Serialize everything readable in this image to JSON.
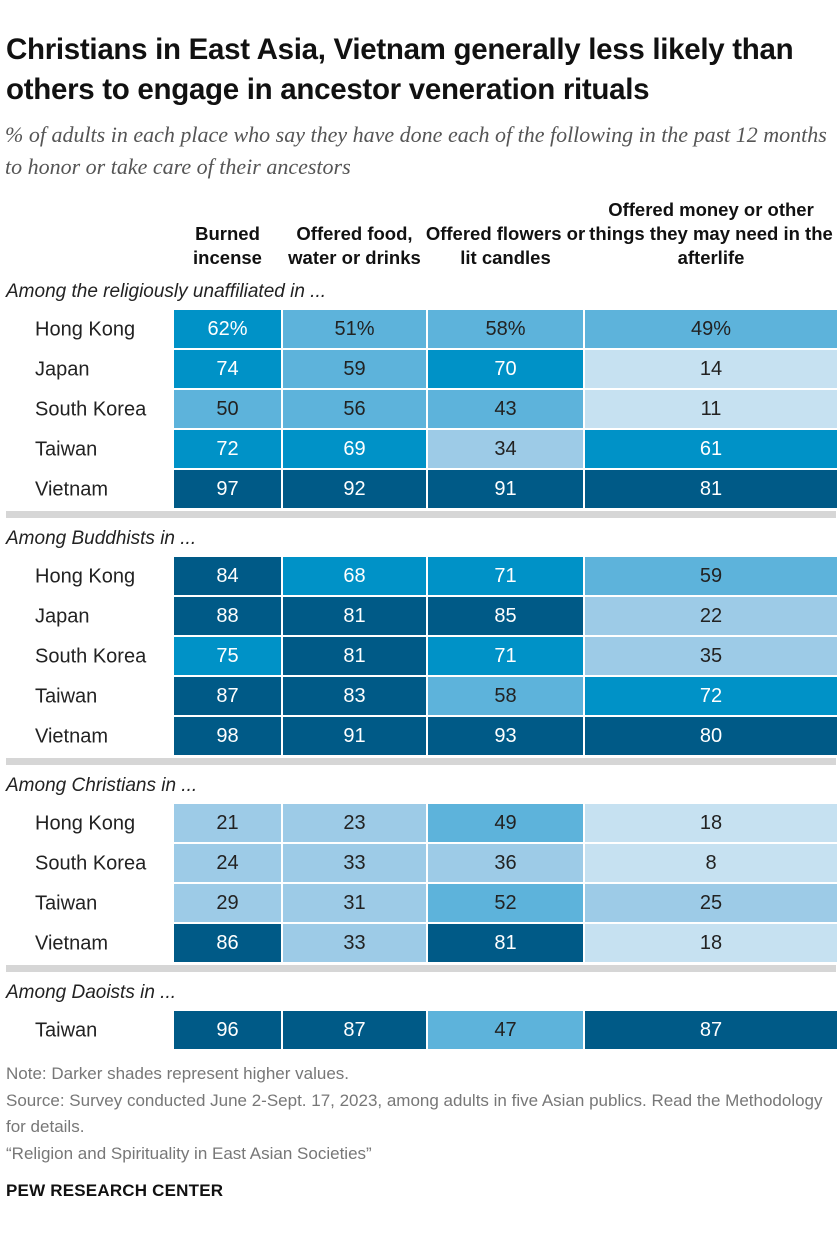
{
  "title": "Christians in East Asia, Vietnam generally less likely than others to engage in ancestor veneration rituals",
  "subtitle": "% of adults in each place who say they have done each of the following in the past 12 months to honor or take care of their ancestors",
  "notes": {
    "note": "Note: Darker shades represent higher values.",
    "source": "Source: Survey conducted June 2-Sept. 17, 2023, among adults in five Asian publics. Read the Methodology for details.",
    "report": "“Religion and Spirituality in East Asian Societies”",
    "brand": "PEW RESEARCH CENTER"
  },
  "colors": {
    "bin_0_19": "#c6e1f1",
    "bin_20_39": "#9dcbe7",
    "bin_40_59": "#5db3db",
    "bin_60_79": "#0092c7",
    "bin_80_100": "#005a87",
    "separator": "#d6d6d6"
  },
  "chart_data": {
    "type": "heatmap",
    "title": "Christians in East Asia, Vietnam generally less likely than others to engage in ancestor veneration rituals",
    "unit": "%",
    "columns": [
      "Burned incense",
      "Offered food, water or drinks",
      "Offered flowers or lit candles",
      "Offered money or other things they may need in the afterlife"
    ],
    "groups": [
      {
        "label": "Among the religiously unaffiliated in ...",
        "rows": [
          {
            "place": "Hong Kong",
            "values": [
              62,
              51,
              58,
              49
            ],
            "display": [
              "62%",
              "51%",
              "58%",
              "49%"
            ]
          },
          {
            "place": "Japan",
            "values": [
              74,
              59,
              70,
              14
            ]
          },
          {
            "place": "South Korea",
            "values": [
              50,
              56,
              43,
              11
            ]
          },
          {
            "place": "Taiwan",
            "values": [
              72,
              69,
              34,
              61
            ]
          },
          {
            "place": "Vietnam",
            "values": [
              97,
              92,
              91,
              81
            ]
          }
        ]
      },
      {
        "label": "Among Buddhists in ...",
        "rows": [
          {
            "place": "Hong Kong",
            "values": [
              84,
              68,
              71,
              59
            ]
          },
          {
            "place": "Japan",
            "values": [
              88,
              81,
              85,
              22
            ]
          },
          {
            "place": "South Korea",
            "values": [
              75,
              81,
              71,
              35
            ]
          },
          {
            "place": "Taiwan",
            "values": [
              87,
              83,
              58,
              72
            ]
          },
          {
            "place": "Vietnam",
            "values": [
              98,
              91,
              93,
              80
            ]
          }
        ]
      },
      {
        "label": "Among Christians in ...",
        "rows": [
          {
            "place": "Hong Kong",
            "values": [
              21,
              23,
              49,
              18
            ]
          },
          {
            "place": "South Korea",
            "values": [
              24,
              33,
              36,
              8
            ]
          },
          {
            "place": "Taiwan",
            "values": [
              29,
              31,
              52,
              25
            ]
          },
          {
            "place": "Vietnam",
            "values": [
              86,
              33,
              81,
              18
            ]
          }
        ]
      },
      {
        "label": "Among Daoists in ...",
        "rows": [
          {
            "place": "Taiwan",
            "values": [
              96,
              87,
              47,
              87
            ]
          }
        ]
      }
    ]
  }
}
